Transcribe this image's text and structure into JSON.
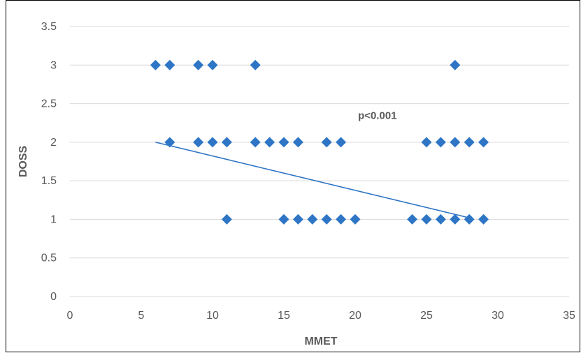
{
  "chart_data": {
    "type": "scatter",
    "title": "",
    "xlabel": "MMET",
    "ylabel": "DOSS",
    "xlim": [
      0,
      35
    ],
    "ylim": [
      0,
      3.5
    ],
    "x_ticks": [
      "0",
      "5",
      "10",
      "15",
      "20",
      "25",
      "30",
      "35"
    ],
    "y_ticks": [
      "0",
      "0.5",
      "1",
      "1.5",
      "2",
      "2.5",
      "3",
      "3.5"
    ],
    "grid": "horizontal",
    "marker": "diamond",
    "colors": {
      "points": "#2e75c5",
      "trendline": "#2e75c5",
      "grid": "#d9d9d9",
      "text": "#595959"
    },
    "points": [
      {
        "x": 6,
        "y": 3
      },
      {
        "x": 7,
        "y": 3
      },
      {
        "x": 9,
        "y": 3
      },
      {
        "x": 10,
        "y": 3
      },
      {
        "x": 13,
        "y": 3
      },
      {
        "x": 27,
        "y": 3
      },
      {
        "x": 7,
        "y": 2
      },
      {
        "x": 9,
        "y": 2
      },
      {
        "x": 10,
        "y": 2
      },
      {
        "x": 11,
        "y": 2
      },
      {
        "x": 13,
        "y": 2
      },
      {
        "x": 14,
        "y": 2
      },
      {
        "x": 15,
        "y": 2
      },
      {
        "x": 16,
        "y": 2
      },
      {
        "x": 18,
        "y": 2
      },
      {
        "x": 19,
        "y": 2
      },
      {
        "x": 25,
        "y": 2
      },
      {
        "x": 26,
        "y": 2
      },
      {
        "x": 27,
        "y": 2
      },
      {
        "x": 28,
        "y": 2
      },
      {
        "x": 29,
        "y": 2
      },
      {
        "x": 11,
        "y": 1
      },
      {
        "x": 15,
        "y": 1
      },
      {
        "x": 16,
        "y": 1
      },
      {
        "x": 17,
        "y": 1
      },
      {
        "x": 18,
        "y": 1
      },
      {
        "x": 19,
        "y": 1
      },
      {
        "x": 20,
        "y": 1
      },
      {
        "x": 24,
        "y": 1
      },
      {
        "x": 25,
        "y": 1
      },
      {
        "x": 26,
        "y": 1
      },
      {
        "x": 27,
        "y": 1
      },
      {
        "x": 28,
        "y": 1
      },
      {
        "x": 29,
        "y": 1
      }
    ],
    "trendline": {
      "x": [
        6,
        28
      ],
      "y": [
        2.0,
        1.02
      ]
    },
    "annotations": [
      {
        "text": "p<0.001",
        "x": 20.2,
        "y": 2.3
      }
    ]
  }
}
